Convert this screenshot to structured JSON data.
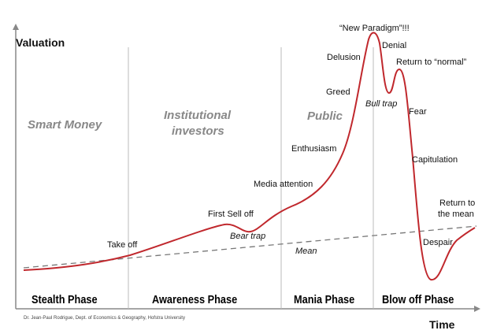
{
  "axes": {
    "y_label": "Valuation",
    "x_label": "Time"
  },
  "groups": {
    "smart_money": "Smart Money",
    "institutional_1": "Institutional",
    "institutional_2": "investors",
    "public": "Public"
  },
  "phases": [
    "Stealth Phase",
    "Awareness Phase",
    "Mania Phase",
    "Blow off Phase"
  ],
  "annotations": {
    "new_paradigm": "“New Paradigm”!!!",
    "denial": "Denial",
    "delusion": "Delusion",
    "return_normal": "Return to “normal”",
    "greed": "Greed",
    "bull_trap": "Bull trap",
    "fear": "Fear",
    "enthusiasm": "Enthusiasm",
    "capitulation": "Capitulation",
    "media_attention": "Media attention",
    "return_mean_1": "Return to",
    "return_mean_2": "the mean",
    "first_sell_off": "First Sell off",
    "take_off": "Take off",
    "bear_trap": "Bear trap",
    "mean": "Mean",
    "despair": "Despair"
  },
  "credit": "Dr. Jean-Paul Rodrigue, Dept. of Economics & Geography, Hofstra University",
  "colors": {
    "curve": "#c0282d",
    "mean_line": "#777777",
    "axes": "#888888",
    "dividers": "#bbbbbb"
  }
}
